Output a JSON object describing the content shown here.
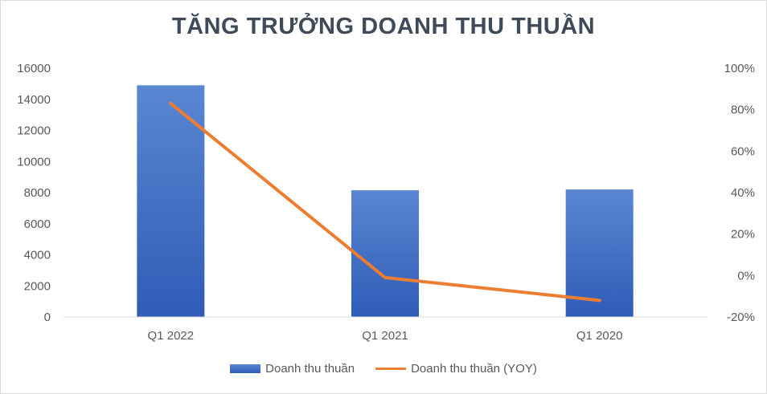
{
  "chart_data": {
    "type": "bar",
    "title": "TĂNG TRƯỞNG DOANH THU THUẦN",
    "categories": [
      "Q1 2022",
      "Q1 2021",
      "Q1 2020"
    ],
    "series": [
      {
        "name": "Doanh thu thuần",
        "type": "bar",
        "axis": "left",
        "values": [
          14900,
          8150,
          8200
        ],
        "color": "#4472c4"
      },
      {
        "name": "Doanh thu thuần (YOY)",
        "type": "line",
        "axis": "right",
        "values": [
          83,
          -1,
          -12
        ],
        "color": "#ed7d31"
      }
    ],
    "y_left": {
      "ticks": [
        "0",
        "2000",
        "4000",
        "6000",
        "8000",
        "10000",
        "12000",
        "14000",
        "16000"
      ],
      "ylim": [
        0,
        16000
      ]
    },
    "y_right": {
      "ticks": [
        "-20%",
        "0%",
        "20%",
        "40%",
        "60%",
        "80%",
        "100%"
      ],
      "ylim": [
        -20,
        100
      ],
      "unit": "%"
    },
    "legend_position": "bottom",
    "grid": false
  }
}
